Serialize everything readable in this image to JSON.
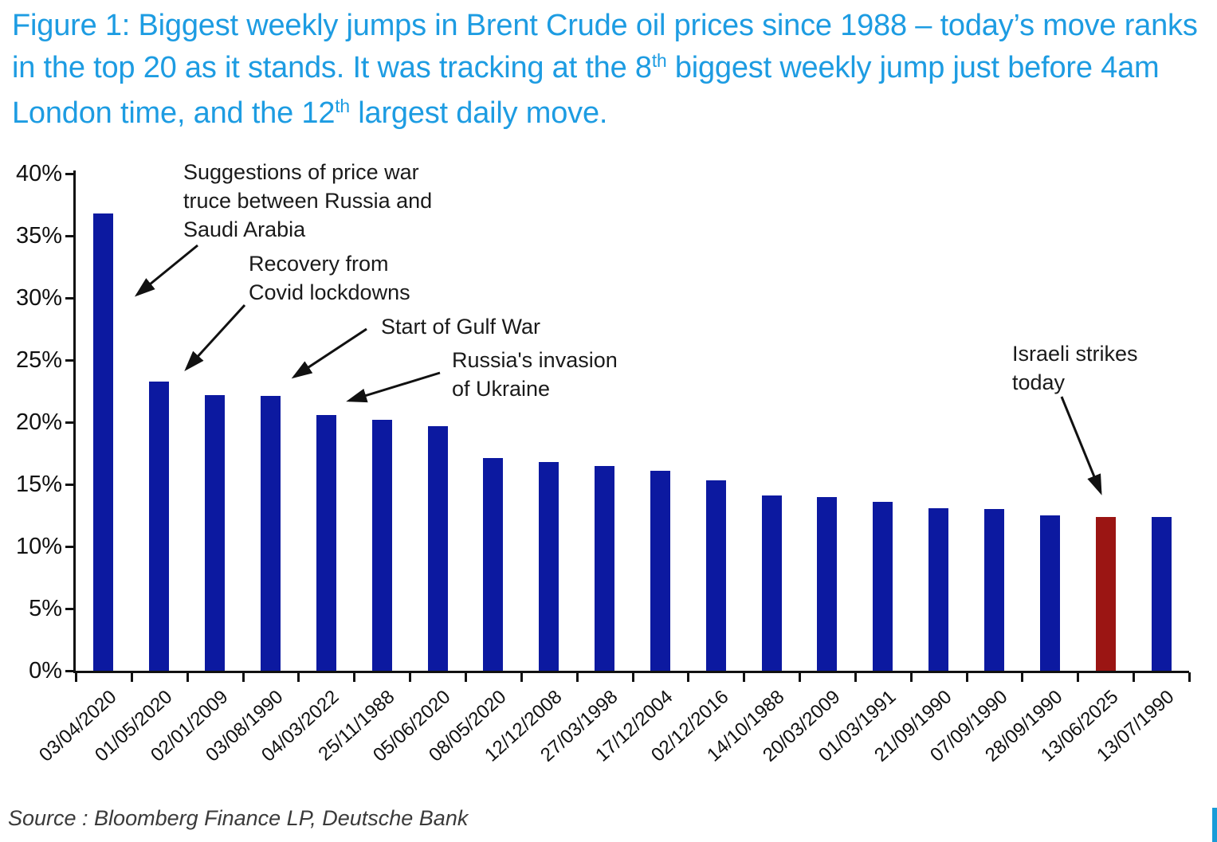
{
  "figure_title": {
    "part1": "Figure 1: Biggest weekly jumps in Brent Crude oil prices since 1988 – today’s move ranks in the top 20 as it stands. It was tracking at the 8",
    "sup1": "th",
    "part2": " biggest weekly jump just before 4am London time, and the 12",
    "sup2": "th",
    "part3": " largest daily move."
  },
  "chart_data": {
    "type": "bar",
    "title": "Biggest weekly jumps in Brent Crude oil prices since 1988",
    "categories": [
      "03/04/2020",
      "01/05/2020",
      "02/01/2009",
      "03/08/1990",
      "04/03/2022",
      "25/11/1988",
      "05/06/2020",
      "08/05/2020",
      "12/12/2008",
      "27/03/1998",
      "17/12/2004",
      "02/12/2016",
      "14/10/1988",
      "20/03/2009",
      "01/03/1991",
      "21/09/1990",
      "07/09/1990",
      "28/09/1990",
      "13/06/2025",
      "13/07/1990"
    ],
    "values": [
      36.8,
      23.3,
      22.2,
      22.1,
      20.6,
      20.2,
      19.7,
      17.1,
      16.8,
      16.5,
      16.1,
      15.3,
      14.1,
      14.0,
      13.6,
      13.1,
      13.0,
      12.5,
      12.4,
      12.4
    ],
    "highlight_index": 18,
    "xlabel": "",
    "ylabel": "",
    "ylim": [
      0,
      40
    ],
    "y_tick_labels": [
      "40%",
      "35%",
      "30%",
      "25%",
      "20%",
      "15%",
      "10%",
      "5%",
      "0%"
    ],
    "grid": false,
    "legend": "none",
    "colors": {
      "bar": "#0C19A0",
      "highlight": "#9B1513"
    },
    "annotations": [
      {
        "text": "Suggestions of price war\ntruce between Russia and\nSaudi Arabia",
        "target_date": "03/04/2020"
      },
      {
        "text": "Recovery from\nCovid lockdowns",
        "target_date": "01/05/2020"
      },
      {
        "text": "Start of Gulf War",
        "target_date": "03/08/1990"
      },
      {
        "text": "Russia's invasion\nof Ukraine",
        "target_date": "04/03/2022"
      },
      {
        "text": "Israeli strikes\ntoday",
        "target_date": "13/06/2025"
      }
    ]
  },
  "source": "Source : Bloomberg Finance LP, Deutsche Bank",
  "colors": {
    "title": "#1D9CE2",
    "accent_strip": "#199CD8",
    "axis": "#111111"
  }
}
